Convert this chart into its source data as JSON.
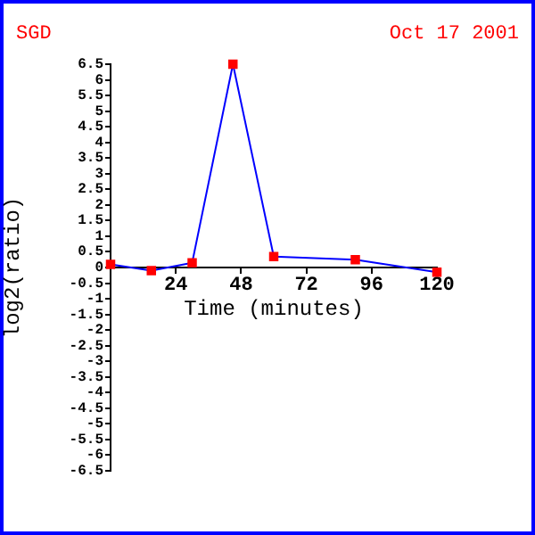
{
  "chart_data": {
    "type": "line",
    "xlabel": "Time (minutes)",
    "ylabel": "log2(ratio)",
    "annotations": [
      "SGD",
      "Oct 17 2001"
    ],
    "x": [
      0,
      15,
      30,
      45,
      60,
      90,
      120
    ],
    "series": [
      {
        "type": "line",
        "color": "#0000ff",
        "marker": "none",
        "values": [
          0.1,
          -0.1,
          0.15,
          6.5,
          0.35,
          0.25,
          -0.15
        ]
      },
      {
        "type": "scatter",
        "color": "#ff0000",
        "marker": "square",
        "values": [
          0.1,
          -0.1,
          0.15,
          6.5,
          0.35,
          0.25,
          -0.15
        ]
      }
    ],
    "xlim": [
      0,
      120
    ],
    "xticks": [
      24,
      48,
      72,
      96,
      120
    ],
    "ylim": [
      -6.5,
      6.5
    ],
    "yticks": [
      -6.5,
      -6,
      -5.5,
      -5,
      -4.5,
      -4,
      -3.5,
      -3,
      -2.5,
      -2,
      -1.5,
      -1,
      -0.5,
      0,
      0.5,
      1,
      1.5,
      2,
      2.5,
      3,
      3.5,
      4,
      4.5,
      5,
      5.5,
      6,
      6.5
    ],
    "grid": false,
    "legend": false,
    "line_style": "solid"
  }
}
